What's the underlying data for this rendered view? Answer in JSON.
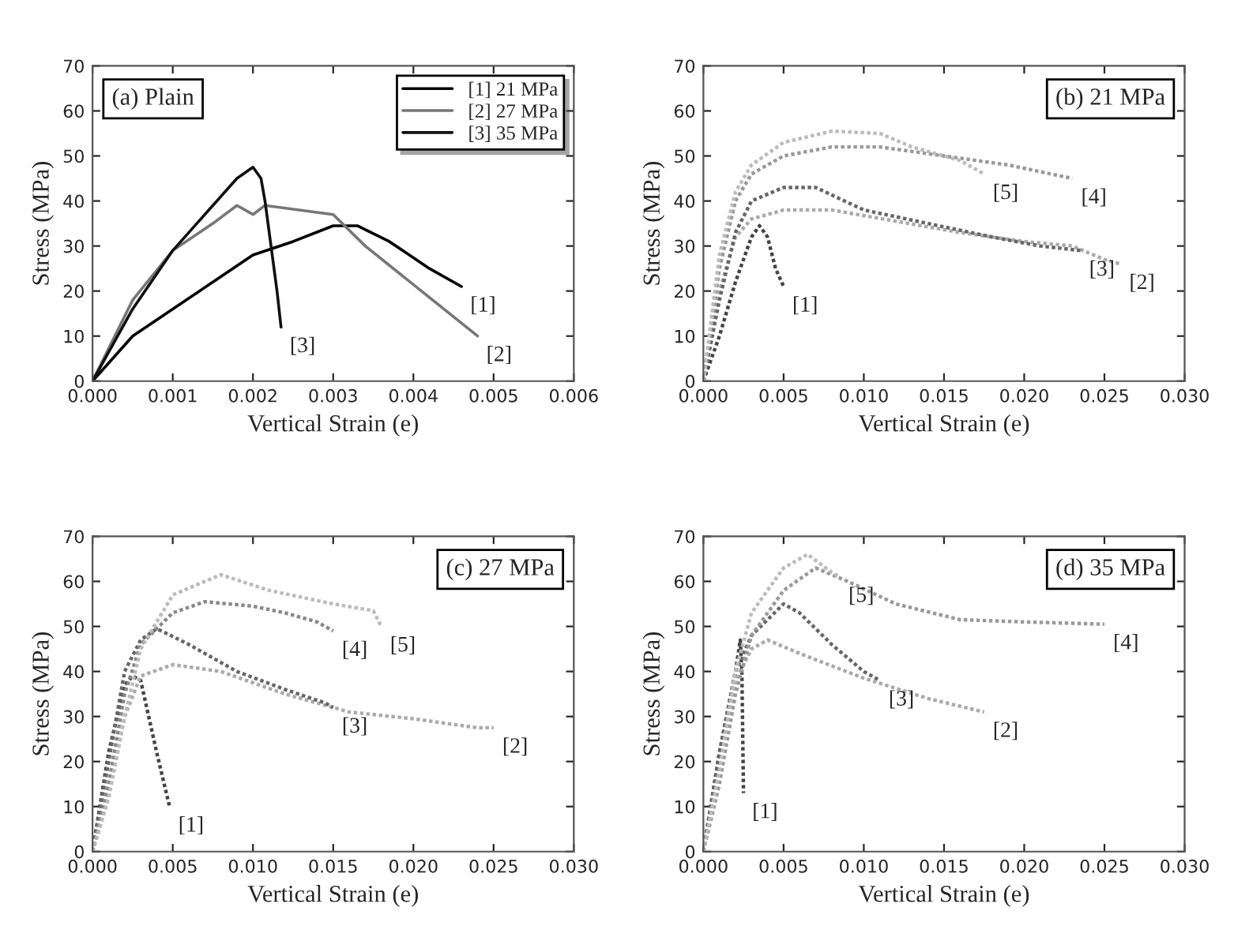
{
  "chart_data": [
    {
      "type": "line",
      "title": "(a) Plain",
      "xlabel": "Vertical Strain (e)",
      "ylabel": "Stress (MPa)",
      "legend": "top right",
      "grid": false,
      "line_style": "solid",
      "xlim": [
        0,
        0.006
      ],
      "xticks": [
        {
          "value": 0,
          "label": "0.000"
        },
        {
          "value": 0.001,
          "label": "0.001"
        },
        {
          "value": 0.002,
          "label": "0.002"
        },
        {
          "value": 0.003,
          "label": "0.003"
        },
        {
          "value": 0.004,
          "label": "0.004"
        },
        {
          "value": 0.005,
          "label": "0.005"
        },
        {
          "value": 0.006,
          "label": "0.006"
        }
      ],
      "ylim": [
        0,
        70
      ],
      "yticks": [
        0,
        10,
        20,
        30,
        40,
        50,
        60,
        70
      ],
      "series": [
        {
          "name": "[1] 21 MPa",
          "color": "#000000",
          "x": [
            0,
            0.0005,
            0.001,
            0.0015,
            0.002,
            0.0025,
            0.003,
            0.0033,
            0.0037,
            0.0042,
            0.0046
          ],
          "values": [
            0,
            10,
            16,
            22,
            28,
            31,
            34.5,
            34.5,
            31,
            25,
            21
          ]
        },
        {
          "name": "[2] 27 MPa",
          "color": "#777777",
          "x": [
            0,
            0.0005,
            0.001,
            0.0015,
            0.0018,
            0.002,
            0.00215,
            0.003,
            0.0034,
            0.0041,
            0.0048
          ],
          "values": [
            0,
            18,
            29,
            35,
            39,
            37,
            39,
            37,
            30,
            20,
            10
          ]
        },
        {
          "name": "[3] 35 MPa",
          "color": "#111111",
          "x": [
            0,
            0.0005,
            0.001,
            0.0015,
            0.0018,
            0.002,
            0.0021,
            0.00215,
            0.0023,
            0.00235
          ],
          "values": [
            0,
            16,
            29,
            39,
            45,
            47.5,
            45,
            40,
            20,
            12
          ]
        }
      ],
      "annotations": [
        {
          "text": "[1]",
          "x": 0.0046,
          "y": 21
        },
        {
          "text": "[2]",
          "x": 0.0048,
          "y": 10
        },
        {
          "text": "[3]",
          "x": 0.00235,
          "y": 12
        }
      ]
    },
    {
      "type": "line",
      "title": "(b) 21 MPa",
      "xlabel": "Vertical Strain (e)",
      "ylabel": "Stress (MPa)",
      "grid": false,
      "line_style": "dotted",
      "xlim": [
        0,
        0.03
      ],
      "xticks": [
        {
          "value": 0,
          "label": "0.000"
        },
        {
          "value": 0.005,
          "label": "0.005"
        },
        {
          "value": 0.01,
          "label": "0.010"
        },
        {
          "value": 0.015,
          "label": "0.015"
        },
        {
          "value": 0.02,
          "label": "0.020"
        },
        {
          "value": 0.025,
          "label": "0.025"
        },
        {
          "value": 0.03,
          "label": "0.030"
        }
      ],
      "ylim": [
        0,
        70
      ],
      "yticks": [
        0,
        10,
        20,
        30,
        40,
        50,
        60,
        70
      ],
      "series": [
        {
          "color": "#444444",
          "x": [
            0,
            0.001,
            0.002,
            0.003,
            0.0035,
            0.004,
            0.0045,
            0.005
          ],
          "values": [
            0,
            10,
            22,
            32,
            34.5,
            32,
            25,
            21
          ]
        },
        {
          "color": "#aaaaaa",
          "x": [
            0,
            0.001,
            0.002,
            0.003,
            0.005,
            0.008,
            0.012,
            0.016,
            0.02,
            0.023,
            0.025,
            0.026
          ],
          "values": [
            0,
            20,
            32,
            36,
            38,
            38,
            35.5,
            33,
            31,
            30,
            27,
            26
          ]
        },
        {
          "color": "#666666",
          "x": [
            0,
            0.001,
            0.002,
            0.003,
            0.005,
            0.007,
            0.01,
            0.014,
            0.018,
            0.021,
            0.0235
          ],
          "values": [
            0,
            18,
            33,
            40,
            43,
            43,
            38,
            35,
            32,
            30,
            29
          ]
        },
        {
          "color": "#999999",
          "x": [
            0,
            0.001,
            0.002,
            0.003,
            0.005,
            0.008,
            0.011,
            0.015,
            0.019,
            0.023
          ],
          "values": [
            0,
            25,
            40,
            46,
            50,
            52,
            52,
            50,
            48,
            45
          ]
        },
        {
          "color": "#bbbbbb",
          "x": [
            0,
            0.001,
            0.002,
            0.003,
            0.005,
            0.008,
            0.011,
            0.013,
            0.016,
            0.0175
          ],
          "values": [
            0,
            28,
            42,
            48,
            53,
            55.5,
            55,
            52,
            49,
            46
          ]
        }
      ],
      "annotations": [
        {
          "text": "[5]",
          "x": 0.0175,
          "y": 46
        },
        {
          "text": "[4]",
          "x": 0.023,
          "y": 45
        },
        {
          "text": "[3]",
          "x": 0.0235,
          "y": 29
        },
        {
          "text": "[2]",
          "x": 0.026,
          "y": 26
        },
        {
          "text": "[1]",
          "x": 0.005,
          "y": 21
        }
      ]
    },
    {
      "type": "line",
      "title": "(c) 27 MPa",
      "xlabel": "Vertical Strain (e)",
      "ylabel": "Stress (MPa)",
      "grid": false,
      "line_style": "dotted",
      "xlim": [
        0,
        0.03
      ],
      "xticks": [
        {
          "value": 0,
          "label": "0.000"
        },
        {
          "value": 0.005,
          "label": "0.005"
        },
        {
          "value": 0.01,
          "label": "0.010"
        },
        {
          "value": 0.015,
          "label": "0.015"
        },
        {
          "value": 0.02,
          "label": "0.020"
        },
        {
          "value": 0.025,
          "label": "0.025"
        },
        {
          "value": 0.03,
          "label": "0.030"
        }
      ],
      "ylim": [
        0,
        70
      ],
      "yticks": [
        0,
        10,
        20,
        30,
        40,
        50,
        60,
        70
      ],
      "series": [
        {
          "color": "#444444",
          "x": [
            0,
            0.001,
            0.002,
            0.0025,
            0.003,
            0.004,
            0.0048
          ],
          "values": [
            0,
            22,
            37,
            39,
            38,
            22,
            10
          ]
        },
        {
          "color": "#aaaaaa",
          "x": [
            0,
            0.001,
            0.002,
            0.003,
            0.005,
            0.008,
            0.012,
            0.016,
            0.02,
            0.024,
            0.025
          ],
          "values": [
            0,
            12,
            30,
            39,
            41.5,
            40,
            35,
            31,
            29.5,
            27.5,
            27.5
          ]
        },
        {
          "color": "#666666",
          "x": [
            0,
            0.001,
            0.002,
            0.003,
            0.004,
            0.006,
            0.009,
            0.012,
            0.0145,
            0.015
          ],
          "values": [
            0,
            20,
            40,
            47,
            49.5,
            46,
            40,
            36,
            33,
            32
          ]
        },
        {
          "color": "#888888",
          "x": [
            0,
            0.001,
            0.002,
            0.003,
            0.005,
            0.007,
            0.01,
            0.012,
            0.014,
            0.015
          ],
          "values": [
            0,
            15,
            35,
            46,
            53,
            55.5,
            54.5,
            53,
            51,
            49
          ]
        },
        {
          "color": "#bbbbbb",
          "x": [
            0,
            0.001,
            0.002,
            0.003,
            0.005,
            0.008,
            0.011,
            0.015,
            0.0175,
            0.018
          ],
          "values": [
            0,
            12,
            30,
            45,
            57,
            61.5,
            58,
            55,
            53.5,
            50
          ]
        }
      ],
      "annotations": [
        {
          "text": "[1]",
          "x": 0.0048,
          "y": 10
        },
        {
          "text": "[2]",
          "x": 0.025,
          "y": 27.5
        },
        {
          "text": "[3]",
          "x": 0.015,
          "y": 32
        },
        {
          "text": "[4]",
          "x": 0.015,
          "y": 49
        },
        {
          "text": "[5]",
          "x": 0.018,
          "y": 50
        }
      ]
    },
    {
      "type": "line",
      "title": "(d) 35 MPa",
      "xlabel": "Vertical Strain (e)",
      "ylabel": "Stress (MPa)",
      "grid": false,
      "line_style": "dotted",
      "xlim": [
        0,
        0.03
      ],
      "xticks": [
        {
          "value": 0,
          "label": "0.000"
        },
        {
          "value": 0.005,
          "label": "0.005"
        },
        {
          "value": 0.01,
          "label": "0.010"
        },
        {
          "value": 0.015,
          "label": "0.015"
        },
        {
          "value": 0.02,
          "label": "0.020"
        },
        {
          "value": 0.025,
          "label": "0.025"
        },
        {
          "value": 0.03,
          "label": "0.030"
        }
      ],
      "ylim": [
        0,
        70
      ],
      "yticks": [
        0,
        10,
        20,
        30,
        40,
        50,
        60,
        70
      ],
      "series": [
        {
          "color": "#444444",
          "x": [
            0,
            0.001,
            0.002,
            0.0023,
            0.0024,
            0.0025
          ],
          "values": [
            0,
            22,
            40,
            47,
            40,
            13
          ]
        },
        {
          "color": "#aaaaaa",
          "x": [
            0,
            0.001,
            0.002,
            0.003,
            0.004,
            0.006,
            0.01,
            0.014,
            0.0175
          ],
          "values": [
            0,
            20,
            38,
            45,
            47,
            44,
            38.5,
            34,
            31
          ]
        },
        {
          "color": "#666666",
          "x": [
            0,
            0.001,
            0.002,
            0.003,
            0.005,
            0.006,
            0.008,
            0.01,
            0.011
          ],
          "values": [
            0,
            22,
            40,
            48,
            55,
            53,
            46,
            40,
            38
          ]
        },
        {
          "color": "#999999",
          "x": [
            0,
            0.001,
            0.002,
            0.003,
            0.005,
            0.007,
            0.009,
            0.012,
            0.016,
            0.02,
            0.025
          ],
          "values": [
            0,
            15,
            35,
            48,
            58,
            63,
            60,
            55,
            51.5,
            51,
            50.5
          ]
        },
        {
          "color": "#bbbbbb",
          "x": [
            0,
            0.001,
            0.002,
            0.003,
            0.005,
            0.0065,
            0.008,
            0.0085
          ],
          "values": [
            0,
            18,
            40,
            53,
            63,
            66,
            62,
            61
          ]
        }
      ],
      "annotations": [
        {
          "text": "[5]",
          "x": 0.0085,
          "y": 61
        },
        {
          "text": "[4]",
          "x": 0.025,
          "y": 50.5
        },
        {
          "text": "[3]",
          "x": 0.011,
          "y": 38
        },
        {
          "text": "[2]",
          "x": 0.0175,
          "y": 31
        },
        {
          "text": "[1]",
          "x": 0.0025,
          "y": 13
        }
      ]
    }
  ]
}
